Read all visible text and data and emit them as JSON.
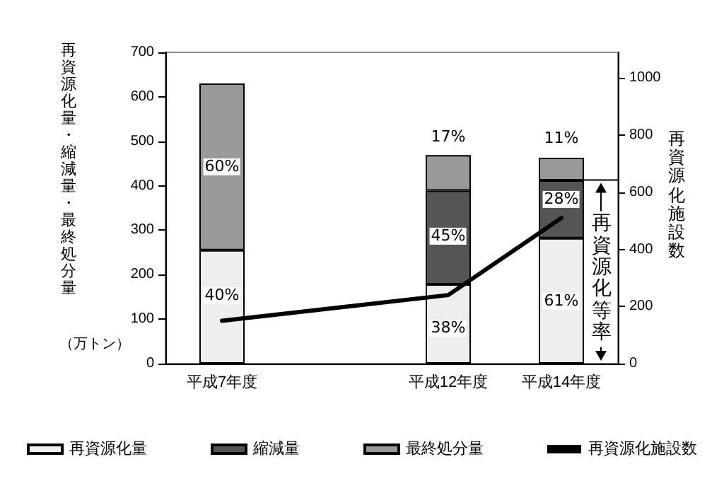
{
  "chart_data": {
    "type": "bar",
    "stacked": true,
    "categories": [
      "平成7年度",
      null,
      "平成12年度",
      "平成14年度"
    ],
    "ylabel": "再資源化量・縮減量・最終処分量",
    "y2label": "再資源化施設数",
    "ylim": [
      0,
      700
    ],
    "yticks": [
      0,
      100,
      200,
      300,
      400,
      500,
      600,
      700
    ],
    "y2lim": [
      0,
      1090
    ],
    "y2ticks": [
      0,
      200,
      400,
      600,
      800,
      1000
    ],
    "series": [
      {
        "name": "再資源化量",
        "color": "#eeeeee",
        "values": [
          255,
          null,
          178,
          282
        ]
      },
      {
        "name": "縮減量",
        "color": "#555555",
        "values": [
          null,
          null,
          211,
          130
        ]
      },
      {
        "name": "最終処分量",
        "color": "#999999",
        "values": [
          375,
          null,
          80,
          51
        ]
      },
      {
        "name": "再資源化施設数",
        "type": "line",
        "axis": "y2",
        "color": "#000000",
        "values": [
          150,
          null,
          240,
          510
        ]
      }
    ],
    "annotations": [
      "（万トン）",
      "再資源化等率",
      {
        "text": "40%",
        "x": "平成7年度",
        "y": 153
      },
      {
        "text": "60%",
        "x": "平成7年度",
        "y": 442
      },
      {
        "text": "38%",
        "x": "平成12年度",
        "y": 80
      },
      {
        "text": "45%",
        "x": "平成12年度",
        "y": 286
      },
      {
        "text": "17%",
        "x": "平成12年度",
        "y": 509
      },
      {
        "text": "61%",
        "x": "平成14年度",
        "y": 140
      },
      {
        "text": "28%",
        "x": "平成14年度",
        "y": 369
      },
      {
        "text": "11%",
        "x": "平成14年度",
        "y": 506
      }
    ],
    "legend": "bottom",
    "grid": false,
    "marker": "none"
  }
}
